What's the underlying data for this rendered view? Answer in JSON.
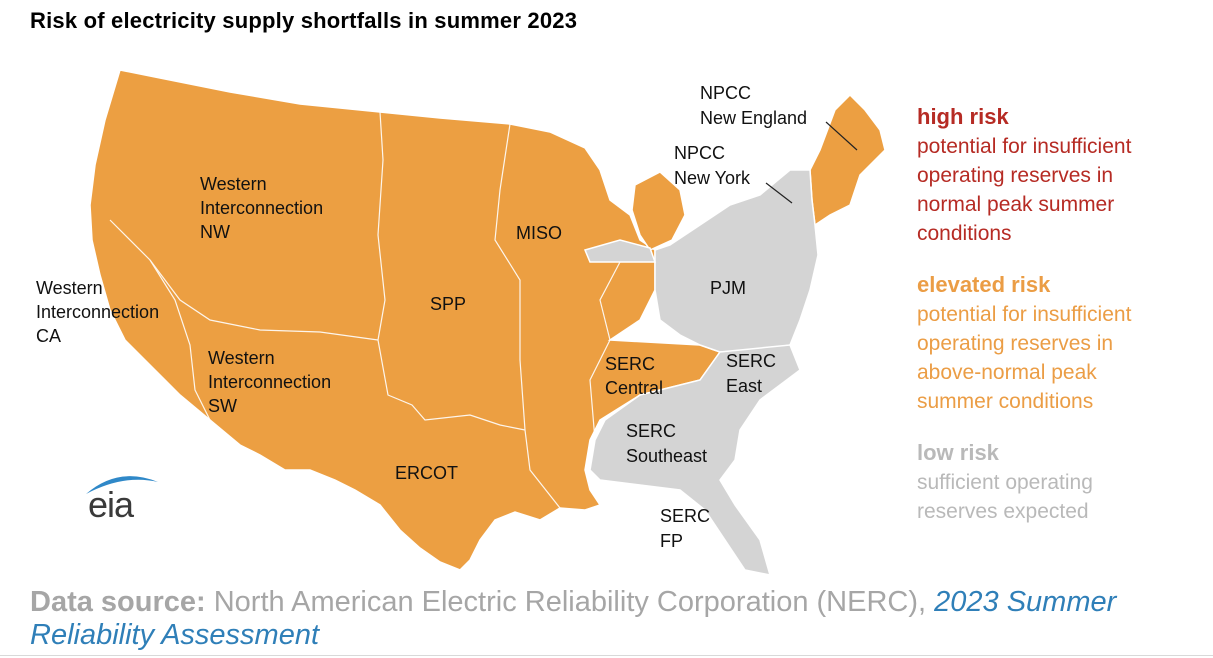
{
  "title": "Risk of electricity supply shortfalls in summer 2023",
  "colors": {
    "high": "#b62b24",
    "elevated": "#eb9d45",
    "low": "#b9b9b9",
    "elevated_fill": "#ec9f42",
    "low_fill": "#d4d4d4",
    "link": "#2f7fb8"
  },
  "regions": [
    {
      "id": "wi-nw",
      "lines": [
        "Western",
        "Interconnection",
        "NW"
      ],
      "risk": "elevated"
    },
    {
      "id": "wi-ca",
      "lines": [
        "Western",
        "Interconnection",
        "CA"
      ],
      "risk": "elevated"
    },
    {
      "id": "wi-sw",
      "lines": [
        "Western",
        "Interconnection",
        "SW"
      ],
      "risk": "elevated"
    },
    {
      "id": "spp",
      "lines": [
        "SPP"
      ],
      "risk": "elevated"
    },
    {
      "id": "miso",
      "lines": [
        "MISO"
      ],
      "risk": "elevated"
    },
    {
      "id": "ercot",
      "lines": [
        "ERCOT"
      ],
      "risk": "elevated"
    },
    {
      "id": "serc-central",
      "lines": [
        "SERC",
        "Central"
      ],
      "risk": "elevated"
    },
    {
      "id": "npcc-ne",
      "lines": [
        "NPCC",
        "New England"
      ],
      "risk": "elevated"
    },
    {
      "id": "npcc-ny",
      "lines": [
        "NPCC",
        "New York"
      ],
      "risk": "low"
    },
    {
      "id": "pjm",
      "lines": [
        "PJM"
      ],
      "risk": "low"
    },
    {
      "id": "serc-east",
      "lines": [
        "SERC",
        "East"
      ],
      "risk": "low"
    },
    {
      "id": "serc-se",
      "lines": [
        "SERC",
        "Southeast"
      ],
      "risk": "low"
    },
    {
      "id": "serc-fp",
      "lines": [
        "SERC",
        "FP"
      ],
      "risk": "low"
    }
  ],
  "legend": {
    "high": {
      "label": "high risk",
      "desc": [
        "potential for insufficient",
        "operating reserves in",
        "normal peak summer",
        "conditions"
      ]
    },
    "elevated": {
      "label": "elevated risk",
      "desc": [
        "potential for insufficient",
        "operating reserves in",
        "above-normal peak",
        "summer conditions"
      ]
    },
    "low": {
      "label": "low risk",
      "desc": [
        "sufficient operating",
        "reserves expected"
      ]
    }
  },
  "logo": {
    "text": "eia"
  },
  "source": {
    "lead": "Data source:",
    "text": " North American Electric Reliability Corporation (NERC), ",
    "publication": "2023 Summer Reliability Assessment"
  }
}
